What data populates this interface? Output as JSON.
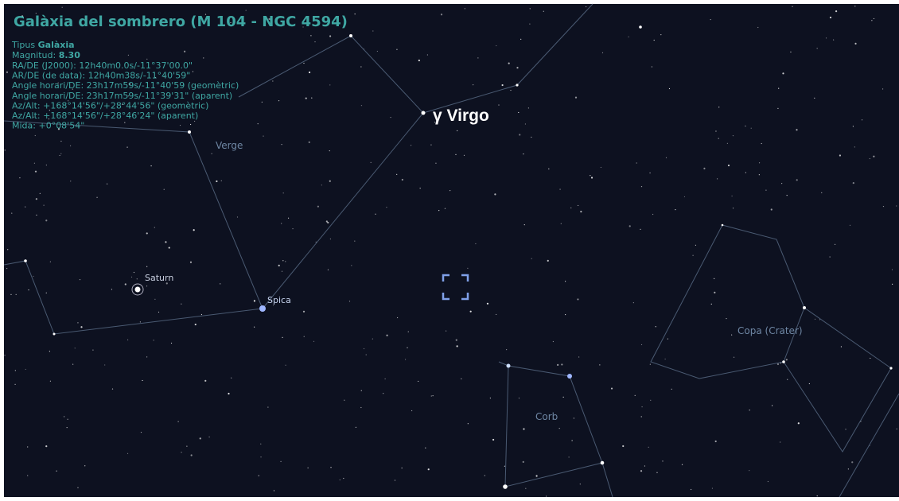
{
  "title": "Galàxia del sombrero (M 104 - NGC 4594)",
  "info": {
    "type": {
      "label": "Tipus",
      "value": "Galàxia"
    },
    "magnitude": {
      "label": "Magnitud:",
      "value": "8.30"
    },
    "lines": [
      "RA/DE (J2000): 12h40m0.0s/-11°37'00.0\"",
      "AR/DE (de data): 12h40m38s/-11°40'59\"",
      "Angle horari/DE: 23h17m59s/-11°40'59  (geomètric)",
      "Angle horari/DE: 23h17m59s/-11°39'31\" (aparent)",
      "Az/Alt: +168°14'56\"/+28°44'56\" (geomètric)",
      "Az/Alt: +168°14'56\"/+28°46'24\" (aparent)",
      "Mida: +0°08'54\""
    ]
  },
  "labels": {
    "verge": "Verge",
    "saturn": "Saturn",
    "spica": "Spica",
    "gamma": "γ Virgo",
    "corb": "Corb",
    "crater": "Copa (Crater)"
  }
}
